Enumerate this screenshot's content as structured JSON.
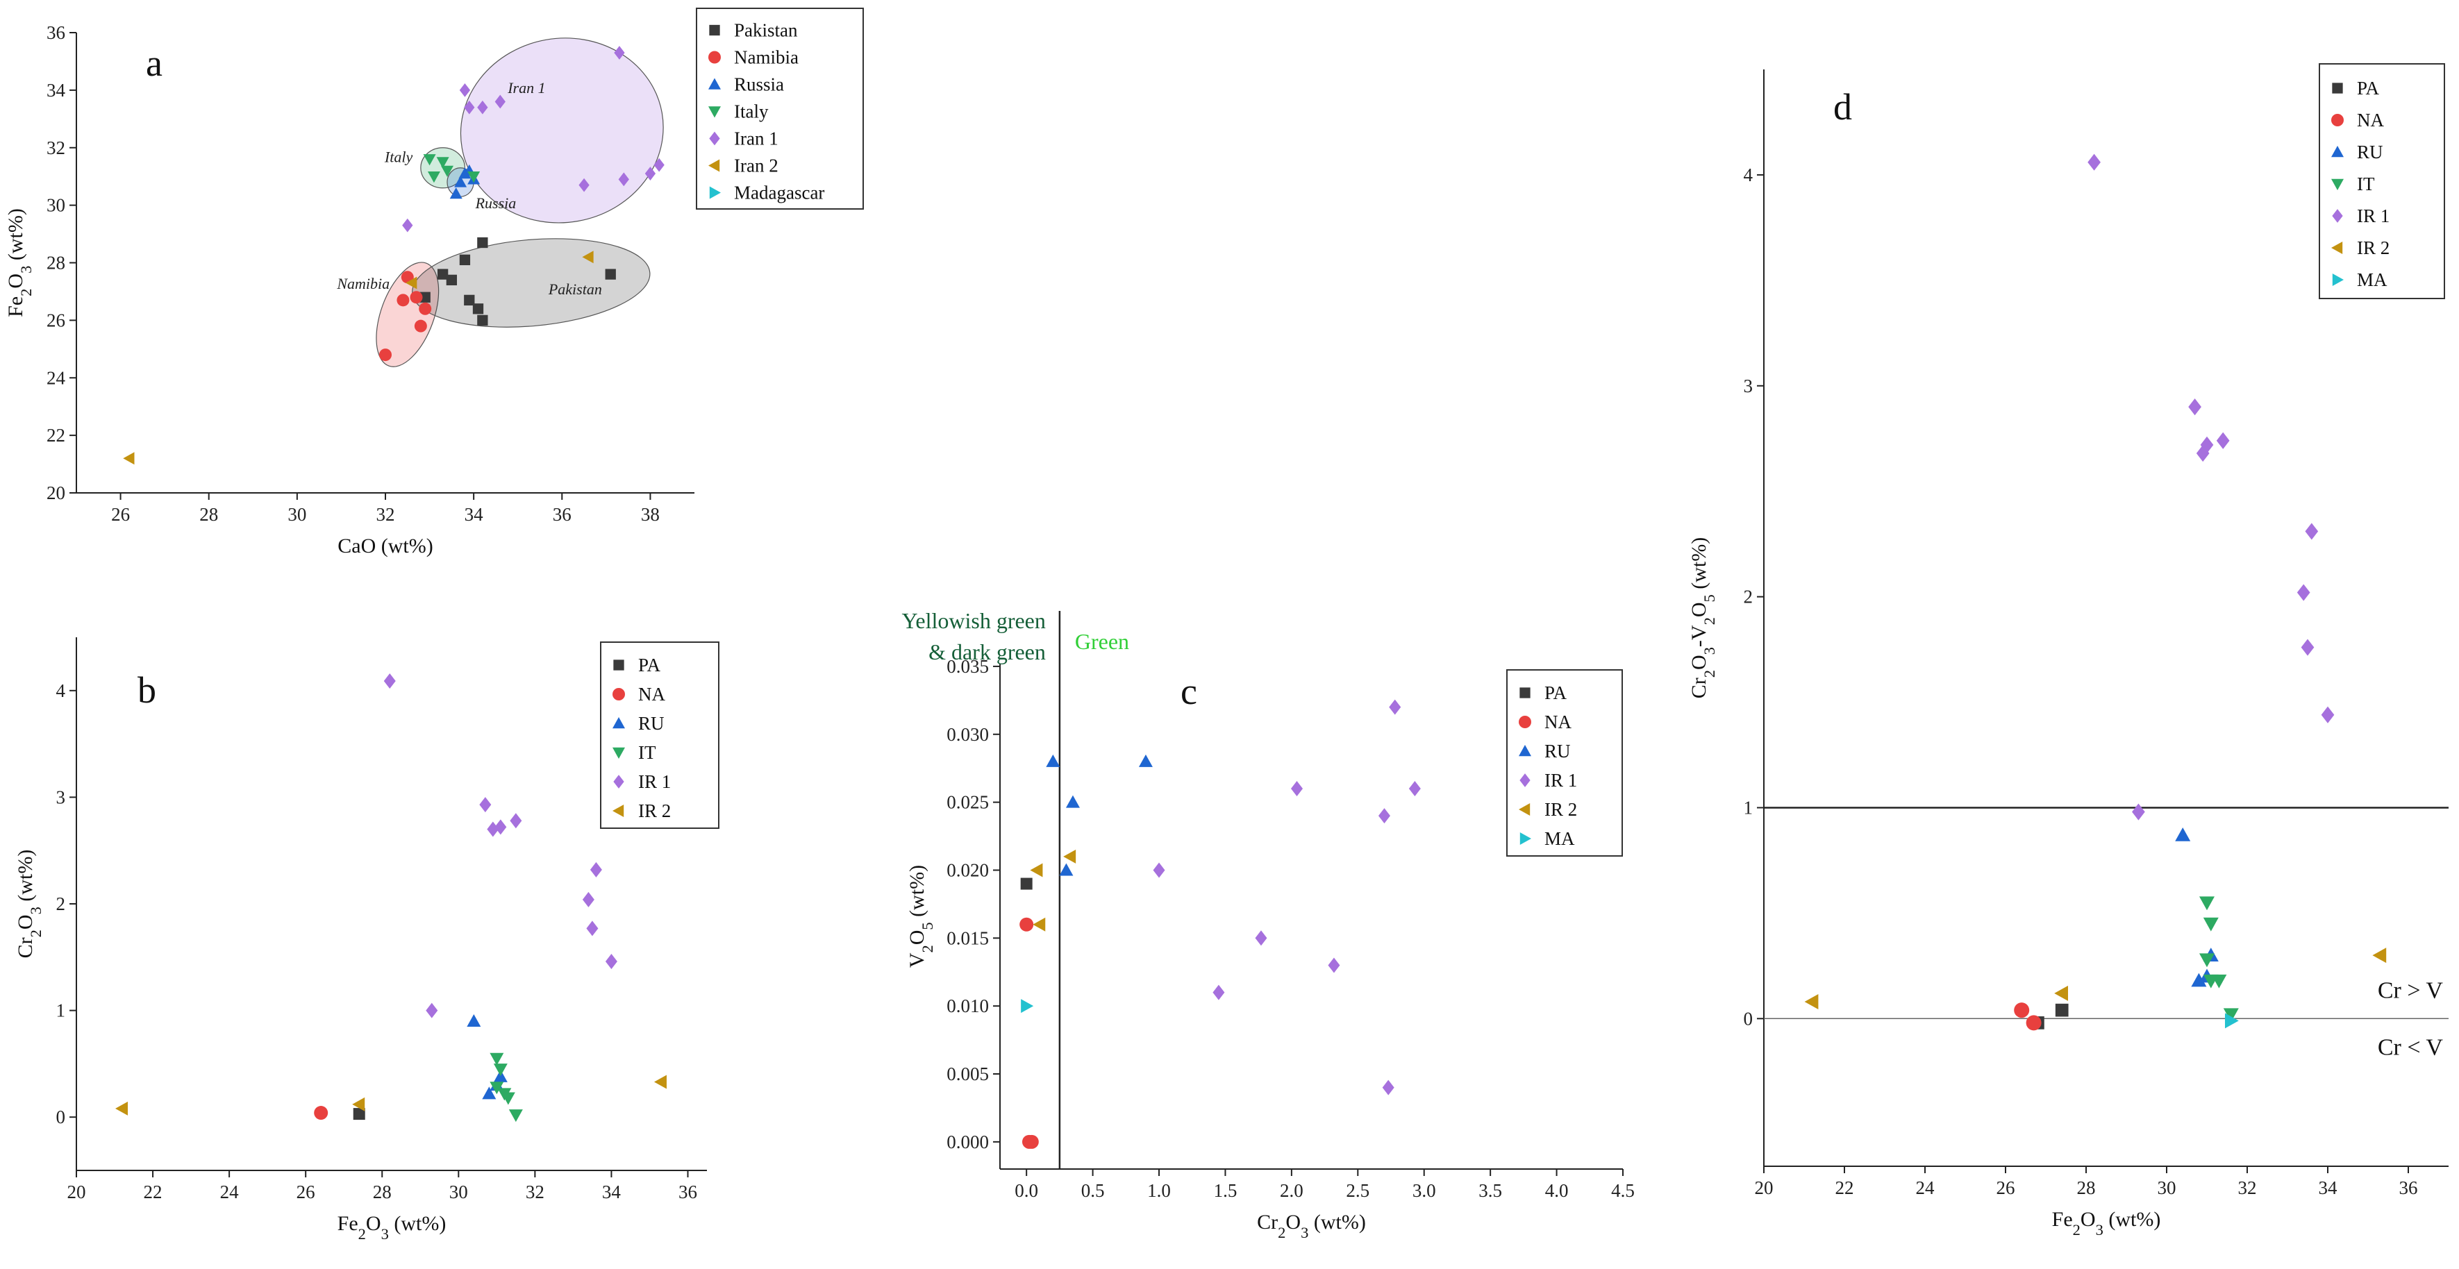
{
  "colors": {
    "PA": "#3a3a3a",
    "NA": "#e8403e",
    "RU": "#1f66d1",
    "IT": "#2daa62",
    "IR1": "#a670dd",
    "IR2": "#c39210",
    "MA": "#23c1cf",
    "yellowish_label": "#155f38",
    "green_label": "#31cf37"
  },
  "chart_data": [
    {
      "id": "a",
      "type": "scatter",
      "letter": "a",
      "xlabel": "CaO (wt%)",
      "ylabel": "Fe2O3 (wt%)",
      "xlim": [
        25,
        39
      ],
      "ylim": [
        20,
        36
      ],
      "xticks": [
        26,
        28,
        30,
        32,
        34,
        36,
        38
      ],
      "yticks": [
        20,
        22,
        24,
        26,
        28,
        30,
        32,
        34,
        36
      ],
      "legend": [
        "Pakistan",
        "Namibia",
        "Russia",
        "Italy",
        "Iran 1",
        "Iran 2",
        "Madagascar"
      ],
      "regions": [
        {
          "name": "Iran 1",
          "color": "IR1"
        },
        {
          "name": "Italy",
          "color": "IT"
        },
        {
          "name": "Russia",
          "color": "RU"
        },
        {
          "name": "Namibia",
          "color": "NA"
        },
        {
          "name": "Pakistan",
          "color": "PA"
        }
      ],
      "series": [
        {
          "name": "Pakistan",
          "key": "PA",
          "marker": "square",
          "points": [
            [
              32.9,
              26.8
            ],
            [
              33.3,
              27.6
            ],
            [
              33.5,
              27.4
            ],
            [
              33.8,
              28.1
            ],
            [
              34.2,
              28.7
            ],
            [
              33.9,
              26.7
            ],
            [
              34.1,
              26.4
            ],
            [
              34.2,
              26.0
            ],
            [
              37.1,
              27.6
            ]
          ]
        },
        {
          "name": "Namibia",
          "key": "NA",
          "marker": "circle",
          "points": [
            [
              32.0,
              24.8
            ],
            [
              32.4,
              26.7
            ],
            [
              32.5,
              27.5
            ],
            [
              32.7,
              26.8
            ],
            [
              32.9,
              26.4
            ],
            [
              32.8,
              25.8
            ]
          ]
        },
        {
          "name": "Russia",
          "key": "RU",
          "marker": "tri-up",
          "points": [
            [
              33.6,
              30.4
            ],
            [
              33.7,
              30.8
            ],
            [
              33.8,
              31.1
            ],
            [
              33.9,
              31.2
            ],
            [
              34.0,
              30.9
            ]
          ]
        },
        {
          "name": "Italy",
          "key": "IT",
          "marker": "tri-down",
          "points": [
            [
              33.0,
              31.6
            ],
            [
              33.1,
              31.0
            ],
            [
              33.4,
              31.2
            ],
            [
              33.3,
              31.5
            ],
            [
              34.0,
              31.0
            ]
          ]
        },
        {
          "name": "Iran 1",
          "key": "IR1",
          "marker": "diamond",
          "points": [
            [
              32.5,
              29.3
            ],
            [
              33.8,
              34.0
            ],
            [
              33.9,
              33.4
            ],
            [
              34.2,
              33.4
            ],
            [
              34.6,
              33.6
            ],
            [
              36.5,
              30.7
            ],
            [
              37.3,
              35.3
            ],
            [
              37.4,
              30.9
            ],
            [
              38.0,
              31.1
            ],
            [
              38.2,
              31.4
            ]
          ]
        },
        {
          "name": "Iran 2",
          "key": "IR2",
          "marker": "tri-left",
          "points": [
            [
              26.2,
              21.2
            ],
            [
              32.6,
              27.3
            ],
            [
              36.6,
              28.2
            ]
          ]
        },
        {
          "name": "Madagascar",
          "key": "MA",
          "marker": "tri-right",
          "points": []
        }
      ]
    },
    {
      "id": "b",
      "type": "scatter",
      "letter": "b",
      "xlabel": "Fe2O3 (wt%)",
      "ylabel": "Cr2O3 (wt%)",
      "xlim": [
        20,
        36.5
      ],
      "ylim": [
        -0.5,
        4.5
      ],
      "xticks": [
        20,
        22,
        24,
        26,
        28,
        30,
        32,
        34,
        36
      ],
      "yticks": [
        0,
        1,
        2,
        3,
        4
      ],
      "legend": [
        "PA",
        "NA",
        "RU",
        "IT",
        "IR 1",
        "IR 2"
      ],
      "series": [
        {
          "name": "PA",
          "key": "PA",
          "marker": "square",
          "points": [
            [
              27.4,
              0.03
            ]
          ]
        },
        {
          "name": "NA",
          "key": "NA",
          "marker": "circle",
          "points": [
            [
              26.4,
              0.04
            ]
          ]
        },
        {
          "name": "RU",
          "key": "RU",
          "marker": "tri-up",
          "points": [
            [
              30.4,
              0.9
            ],
            [
              30.8,
              0.22
            ],
            [
              31.0,
              0.3
            ],
            [
              31.1,
              0.38
            ]
          ]
        },
        {
          "name": "IT",
          "key": "IT",
          "marker": "tri-down",
          "points": [
            [
              31.0,
              0.55
            ],
            [
              31.1,
              0.45
            ],
            [
              31.0,
              0.28
            ],
            [
              31.3,
              0.18
            ],
            [
              31.5,
              0.02
            ],
            [
              31.2,
              0.22
            ]
          ]
        },
        {
          "name": "IR 1",
          "key": "IR1",
          "marker": "diamond",
          "points": [
            [
              28.2,
              4.09
            ],
            [
              29.3,
              1.0
            ],
            [
              30.7,
              2.93
            ],
            [
              30.9,
              2.7
            ],
            [
              31.1,
              2.72
            ],
            [
              31.5,
              2.78
            ],
            [
              33.4,
              2.04
            ],
            [
              33.5,
              1.77
            ],
            [
              33.6,
              2.32
            ],
            [
              34.0,
              1.46
            ]
          ]
        },
        {
          "name": "IR 2",
          "key": "IR2",
          "marker": "tri-left",
          "points": [
            [
              21.2,
              0.08
            ],
            [
              27.4,
              0.12
            ],
            [
              35.3,
              0.33
            ]
          ]
        }
      ]
    },
    {
      "id": "c",
      "type": "scatter",
      "letter": "c",
      "xlabel": "Cr2O3 (wt%)",
      "ylabel": "V2O5 (wt%)",
      "xlim": [
        -0.2,
        4.5
      ],
      "ylim": [
        -0.002,
        0.0352
      ],
      "xticks": [
        0.0,
        0.5,
        1.0,
        1.5,
        2.0,
        2.5,
        3.0,
        3.5,
        4.0,
        4.5
      ],
      "yticks": [
        0.0,
        0.005,
        0.01,
        0.015,
        0.02,
        0.025,
        0.03,
        0.035
      ],
      "divider_x": 0.25,
      "left_label": [
        "Yellowish green",
        "& dark green"
      ],
      "right_label": "Green",
      "legend": [
        "PA",
        "NA",
        "RU",
        "IR 1",
        "IR 2",
        "MA"
      ],
      "series": [
        {
          "name": "PA",
          "key": "PA",
          "marker": "square",
          "points": [
            [
              0.0,
              0.019
            ]
          ]
        },
        {
          "name": "NA",
          "key": "NA",
          "marker": "circle",
          "points": [
            [
              0.0,
              0.016
            ],
            [
              0.02,
              0.0
            ],
            [
              0.04,
              0.0
            ]
          ]
        },
        {
          "name": "RU",
          "key": "RU",
          "marker": "tri-up",
          "points": [
            [
              0.2,
              0.028
            ],
            [
              0.3,
              0.02
            ],
            [
              0.35,
              0.025
            ],
            [
              0.9,
              0.028
            ]
          ]
        },
        {
          "name": "IR 1",
          "key": "IR1",
          "marker": "diamond",
          "points": [
            [
              1.0,
              0.02
            ],
            [
              1.45,
              0.011
            ],
            [
              1.77,
              0.015
            ],
            [
              2.04,
              0.026
            ],
            [
              2.32,
              0.013
            ],
            [
              2.7,
              0.024
            ],
            [
              2.73,
              0.004
            ],
            [
              2.78,
              0.032
            ],
            [
              2.93,
              0.026
            ]
          ]
        },
        {
          "name": "IR 2",
          "key": "IR2",
          "marker": "tri-left",
          "points": [
            [
              0.08,
              0.02
            ],
            [
              0.1,
              0.016
            ],
            [
              0.33,
              0.021
            ]
          ]
        },
        {
          "name": "MA",
          "key": "MA",
          "marker": "tri-right",
          "points": [
            [
              0.0,
              0.01
            ]
          ]
        }
      ]
    },
    {
      "id": "d",
      "type": "scatter",
      "letter": "d",
      "xlabel": "Fe2O3 (wt%)",
      "ylabel": "Cr2O3-V2O5 (wt%)",
      "xlim": [
        20,
        37
      ],
      "ylim": [
        -0.7,
        4.5
      ],
      "xticks": [
        20,
        22,
        24,
        26,
        28,
        30,
        32,
        34,
        36
      ],
      "yticks": [
        0,
        1,
        2,
        3,
        4
      ],
      "hline_top": 1,
      "hline_zero": 0,
      "above_label": "Cr > V",
      "below_label": "Cr < V",
      "legend": [
        "PA",
        "NA",
        "RU",
        "IT",
        "IR 1",
        "IR 2",
        "MA"
      ],
      "series": [
        {
          "name": "PA",
          "key": "PA",
          "marker": "square",
          "points": [
            [
              26.8,
              -0.02
            ],
            [
              27.4,
              0.04
            ]
          ]
        },
        {
          "name": "NA",
          "key": "NA",
          "marker": "circle",
          "points": [
            [
              26.4,
              0.04
            ],
            [
              26.7,
              -0.02
            ]
          ]
        },
        {
          "name": "RU",
          "key": "RU",
          "marker": "tri-up",
          "points": [
            [
              30.4,
              0.87
            ],
            [
              31.1,
              0.3
            ],
            [
              30.8,
              0.18
            ],
            [
              31.0,
              0.2
            ]
          ]
        },
        {
          "name": "IT",
          "key": "IT",
          "marker": "tri-down",
          "points": [
            [
              31.0,
              0.55
            ],
            [
              31.1,
              0.45
            ],
            [
              31.0,
              0.28
            ],
            [
              31.1,
              0.18
            ],
            [
              31.3,
              0.18
            ],
            [
              31.6,
              0.02
            ]
          ]
        },
        {
          "name": "IR 1",
          "key": "IR1",
          "marker": "diamond",
          "points": [
            [
              28.2,
              4.06
            ],
            [
              29.3,
              0.98
            ],
            [
              30.7,
              2.9
            ],
            [
              30.9,
              2.68
            ],
            [
              31.0,
              2.72
            ],
            [
              31.4,
              2.74
            ],
            [
              33.4,
              2.02
            ],
            [
              33.5,
              1.76
            ],
            [
              33.6,
              2.31
            ],
            [
              34.0,
              1.44
            ]
          ]
        },
        {
          "name": "IR 2",
          "key": "IR2",
          "marker": "tri-left",
          "points": [
            [
              21.2,
              0.08
            ],
            [
              27.4,
              0.12
            ],
            [
              35.3,
              0.3
            ]
          ]
        },
        {
          "name": "MA",
          "key": "MA",
          "marker": "tri-right",
          "points": [
            [
              31.6,
              -0.01
            ]
          ]
        }
      ]
    }
  ]
}
